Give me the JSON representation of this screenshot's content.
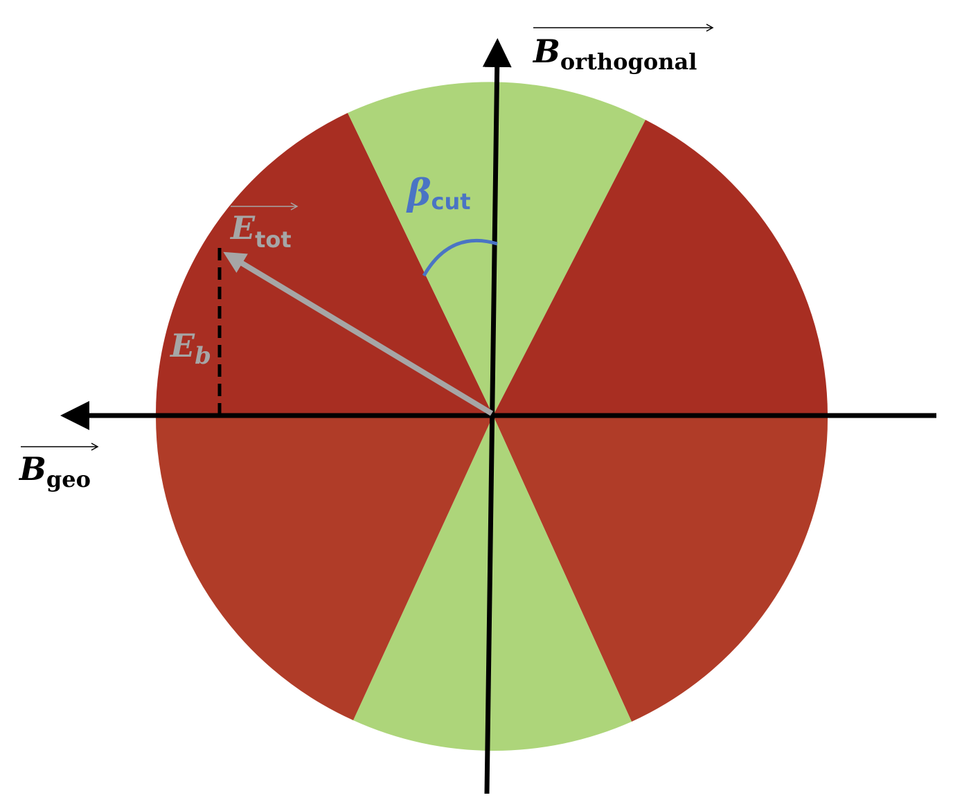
{
  "labels": {
    "b_orthogonal": {
      "symbol": "B",
      "subscript": "orthogonal"
    },
    "b_geo": {
      "symbol": "B",
      "subscript": "geo"
    },
    "e_tot": {
      "symbol": "E",
      "subscript": "tot"
    },
    "e_b": {
      "symbol": "E",
      "subscript": "b"
    },
    "beta_cut": {
      "symbol": "β",
      "subscript": "cut"
    }
  }
}
